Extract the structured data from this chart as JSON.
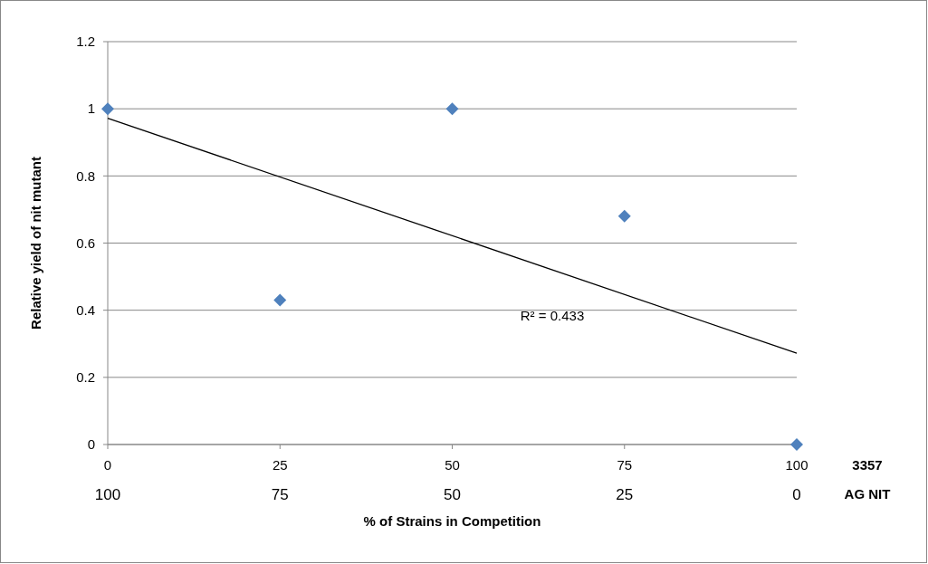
{
  "chart_data": {
    "type": "scatter",
    "ylabel": "Relative yield of nit mutant",
    "xlabel": "% of Strains in Competition",
    "xlim": [
      0,
      100
    ],
    "xticks": [
      0,
      25,
      50,
      75,
      100
    ],
    "x2lim": [
      100,
      0
    ],
    "x2ticks": [
      100,
      75,
      50,
      25,
      0
    ],
    "ylim": [
      0,
      1.2
    ],
    "yticks": [
      0,
      0.2,
      0.4,
      0.6,
      0.8,
      1,
      1.2
    ],
    "grid": "y",
    "marker": "diamond",
    "series": [
      {
        "color": "#4f81bd",
        "x": [
          0,
          25,
          50,
          75,
          100
        ],
        "values": [
          1,
          0.43,
          1,
          0.68,
          0
        ]
      },
      {
        "type": "line",
        "color": "#000000",
        "x": [
          0,
          100
        ],
        "values": [
          0.972,
          0.272
        ],
        "marker": "none",
        "line_style": "solid"
      }
    ],
    "annotations": [
      "3357",
      "AG NIT",
      "R² = 0.433"
    ]
  }
}
